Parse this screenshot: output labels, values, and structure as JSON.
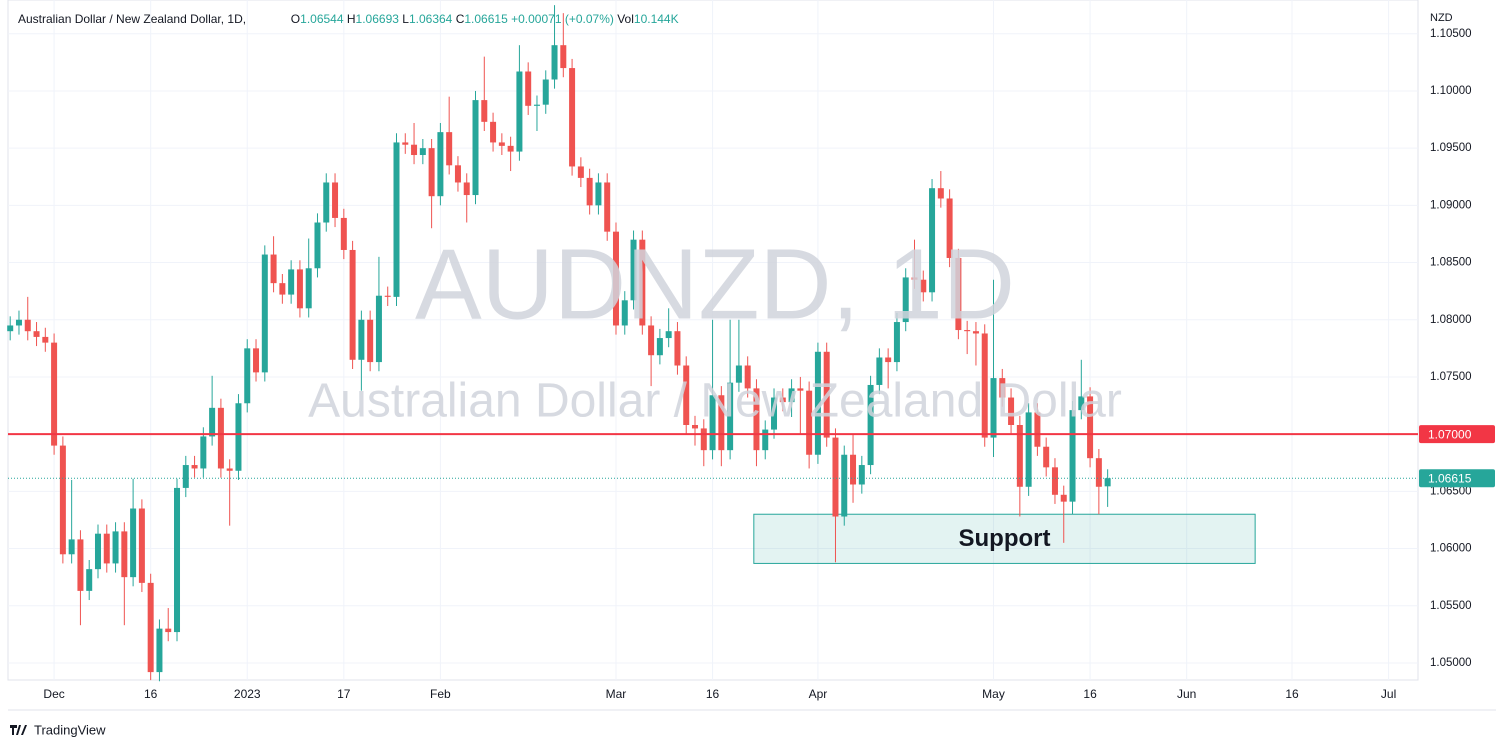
{
  "chart_data": {
    "type": "candlestick",
    "title": "Australian Dollar / New Zealand Dollar, 1D,",
    "watermark": "AUDNZD, 1D",
    "watermark_subtitle": "Australian Dollar / New Zealand Dollar",
    "currency": "NZD",
    "legend_labels": {
      "open": "O",
      "high": "H",
      "low": "L",
      "close": "C",
      "volume": "Vol"
    },
    "change": "+0.00071 (+0.07%)",
    "volume": "10.144K",
    "brand": "TradingView",
    "up_color": "#26a69a",
    "down_color": "#ef5350",
    "grid": true,
    "ylim": [
      1.04851,
      1.10795
    ],
    "yticks": [
      {
        "value": 1.05,
        "label": "1.05000"
      },
      {
        "value": 1.055,
        "label": "1.05500"
      },
      {
        "value": 1.06,
        "label": "1.06000"
      },
      {
        "value": 1.065,
        "label": "1.06500"
      },
      {
        "value": 1.07,
        "label": "1.07000"
      },
      {
        "value": 1.075,
        "label": "1.07500"
      },
      {
        "value": 1.08,
        "label": "1.08000"
      },
      {
        "value": 1.085,
        "label": "1.08500"
      },
      {
        "value": 1.09,
        "label": "1.09000"
      },
      {
        "value": 1.095,
        "label": "1.09500"
      },
      {
        "value": 1.1,
        "label": "1.10000"
      },
      {
        "value": 1.105,
        "label": "1.10500"
      }
    ],
    "xlim": [
      -0.25,
      160.35
    ],
    "xticks": [
      {
        "value": 5,
        "label": "Dec"
      },
      {
        "value": 16,
        "label": "16"
      },
      {
        "value": 27,
        "label": "2023"
      },
      {
        "value": 38,
        "label": "17"
      },
      {
        "value": 49,
        "label": "Feb"
      },
      {
        "value": 69,
        "label": "Mar"
      },
      {
        "value": 80,
        "label": "16"
      },
      {
        "value": 92,
        "label": "Apr"
      },
      {
        "value": 112,
        "label": "May"
      },
      {
        "value": 123,
        "label": "16"
      },
      {
        "value": 134,
        "label": "Jun"
      },
      {
        "value": 146,
        "label": "16"
      },
      {
        "value": 157,
        "label": "Jul"
      }
    ],
    "lines": [
      {
        "value": 1.07,
        "label": "1.07000",
        "color": "#f23645"
      }
    ],
    "zones": [
      {
        "label": "Support",
        "xrange": [
          84.7,
          141.8
        ],
        "yrange": [
          1.0587,
          1.063
        ],
        "color": "#26a69a"
      }
    ],
    "open": [
      1.079,
      1.0795,
      1.08,
      1.079,
      1.0785,
      1.078,
      1.069,
      1.0595,
      1.0608,
      1.0563,
      1.0582,
      1.0613,
      1.0587,
      1.0615,
      1.0575,
      1.0635,
      1.057,
      1.0492,
      1.053,
      1.0527,
      1.0653,
      1.0673,
      1.067,
      1.0698,
      1.0723,
      1.067,
      1.0668,
      1.0727,
      1.0775,
      1.0754,
      1.0857,
      1.0832,
      1.0822,
      1.0844,
      1.081,
      1.0845,
      1.0885,
      1.092,
      1.0889,
      1.0861,
      1.0765,
      1.08,
      1.0763,
      1.0821,
      1.082,
      1.0955,
      1.0953,
      1.0944,
      1.095,
      1.0908,
      1.0964,
      1.0935,
      1.092,
      1.0909,
      1.0992,
      1.0973,
      1.0955,
      1.0952,
      1.0947,
      1.1017,
      1.0987,
      1.0988,
      1.101,
      1.104,
      1.102,
      1.0934,
      1.0924,
      1.09,
      1.092,
      1.0877,
      1.0795,
      1.0817,
      1.087,
      1.0795,
      1.0769,
      1.0784,
      1.079,
      1.076,
      1.0708,
      1.0705,
      1.0686,
      1.0734,
      1.0686,
      1.0745,
      1.076,
      1.074,
      1.0686,
      1.0704,
      1.0732,
      1.0728,
      1.074,
      1.0738,
      1.0682,
      1.0772,
      1.0697,
      1.0628,
      1.0682,
      1.0656,
      1.0673,
      1.0743,
      1.0767,
      1.0763,
      1.0798,
      1.0837,
      1.0835,
      1.0824,
      1.0915,
      1.0906,
      1.0854,
      1.0791,
      1.079,
      1.0788,
      1.0697,
      1.0749,
      1.0732,
      1.0708,
      1.0654,
      1.0719,
      1.0689,
      1.0671,
      1.0647,
      1.0641,
      1.0721,
      1.0733,
      1.0679,
      1.06544
    ],
    "high": [
      1.0803,
      1.0808,
      1.082,
      1.0798,
      1.0793,
      1.0788,
      1.0698,
      1.066,
      1.0616,
      1.059,
      1.0621,
      1.0621,
      1.0623,
      1.0623,
      1.0661,
      1.0643,
      1.0578,
      1.0538,
      1.0548,
      1.0661,
      1.0681,
      1.0681,
      1.0706,
      1.0751,
      1.0731,
      1.0678,
      1.0735,
      1.0783,
      1.0783,
      1.0865,
      1.0873,
      1.084,
      1.0852,
      1.0852,
      1.0871,
      1.0893,
      1.0928,
      1.0928,
      1.0897,
      1.0869,
      1.0808,
      1.0808,
      1.0855,
      1.0829,
      1.0963,
      1.0963,
      1.0972,
      1.0958,
      1.0958,
      1.0972,
      1.0995,
      1.0943,
      1.0928,
      1.1,
      1.103,
      1.0981,
      1.0963,
      1.096,
      1.104,
      1.1025,
      1.0996,
      1.1018,
      1.1075,
      1.1068,
      1.1028,
      1.0942,
      1.0932,
      1.0928,
      1.0928,
      1.0885,
      1.0825,
      1.0878,
      1.0878,
      1.0803,
      1.0792,
      1.081,
      1.0798,
      1.0768,
      1.0716,
      1.0713,
      1.08,
      1.0742,
      1.08,
      1.08,
      1.0768,
      1.0748,
      1.0712,
      1.074,
      1.074,
      1.0748,
      1.075,
      1.0746,
      1.078,
      1.078,
      1.0705,
      1.069,
      1.07,
      1.0681,
      1.0751,
      1.0775,
      1.0775,
      1.0806,
      1.0845,
      1.087,
      1.0843,
      1.0923,
      1.093,
      1.0914,
      1.0862,
      1.0799,
      1.0798,
      1.0796,
      1.0835,
      1.0757,
      1.074,
      1.0716,
      1.0727,
      1.0727,
      1.0697,
      1.0679,
      1.0655,
      1.0729,
      1.0765,
      1.0741,
      1.0687,
      1.06693
    ],
    "low": [
      1.0782,
      1.0787,
      1.0782,
      1.0777,
      1.0772,
      1.0682,
      1.0587,
      1.0587,
      1.0533,
      1.0555,
      1.0574,
      1.0579,
      1.0579,
      1.0533,
      1.0567,
      1.0562,
      1.0485,
      1.0484,
      1.0519,
      1.0519,
      1.0645,
      1.0662,
      1.0662,
      1.069,
      1.0662,
      1.062,
      1.066,
      1.0719,
      1.0746,
      1.0746,
      1.0824,
      1.0814,
      1.0814,
      1.0802,
      1.0802,
      1.0837,
      1.0877,
      1.0881,
      1.0853,
      1.0757,
      1.0738,
      1.0755,
      1.0755,
      1.0812,
      1.0812,
      1.0945,
      1.0936,
      1.0936,
      1.088,
      1.09,
      1.0927,
      1.0912,
      1.0885,
      1.0901,
      1.0965,
      1.0947,
      1.0944,
      1.093,
      1.0939,
      1.0979,
      1.0965,
      1.098,
      1.1002,
      1.1012,
      1.0926,
      1.0916,
      1.0892,
      1.0892,
      1.0869,
      1.0787,
      1.0787,
      1.0809,
      1.0787,
      1.0742,
      1.0761,
      1.0776,
      1.0752,
      1.07,
      1.069,
      1.0672,
      1.0678,
      1.0672,
      1.0678,
      1.0737,
      1.0732,
      1.0672,
      1.0678,
      1.0696,
      1.072,
      1.0715,
      1.07,
      1.067,
      1.0674,
      1.0689,
      1.0588,
      1.062,
      1.064,
      1.0648,
      1.0665,
      1.0735,
      1.074,
      1.0755,
      1.079,
      1.0827,
      1.0816,
      1.0816,
      1.0898,
      1.0846,
      1.0783,
      1.077,
      1.076,
      1.0689,
      1.068,
      1.0724,
      1.07,
      1.0628,
      1.0646,
      1.0681,
      1.0663,
      1.0639,
      1.0605,
      1.063,
      1.0713,
      1.0671,
      1.063,
      1.06364
    ],
    "close": [
      1.0795,
      1.08,
      1.079,
      1.0785,
      1.078,
      1.069,
      1.0595,
      1.0608,
      1.0563,
      1.0582,
      1.0613,
      1.0587,
      1.0615,
      1.0575,
      1.0635,
      1.057,
      1.0492,
      1.053,
      1.0527,
      1.0653,
      1.0673,
      1.067,
      1.0698,
      1.0723,
      1.067,
      1.0668,
      1.0727,
      1.0775,
      1.0754,
      1.0857,
      1.0832,
      1.0822,
      1.0844,
      1.081,
      1.0845,
      1.0885,
      1.092,
      1.0889,
      1.0861,
      1.0765,
      1.08,
      1.0763,
      1.0821,
      1.082,
      1.0955,
      1.0953,
      1.0944,
      1.095,
      1.0908,
      1.0964,
      1.0935,
      1.092,
      1.0909,
      1.0992,
      1.0973,
      1.0955,
      1.0952,
      1.0947,
      1.1017,
      1.0987,
      1.0988,
      1.101,
      1.104,
      1.102,
      1.0934,
      1.0924,
      1.09,
      1.092,
      1.0877,
      1.0795,
      1.0817,
      1.087,
      1.0795,
      1.0769,
      1.0784,
      1.079,
      1.076,
      1.0708,
      1.0705,
      1.0686,
      1.0734,
      1.0686,
      1.0745,
      1.076,
      1.074,
      1.0686,
      1.0704,
      1.0732,
      1.0728,
      1.074,
      1.0738,
      1.0682,
      1.0772,
      1.0697,
      1.0628,
      1.0682,
      1.0656,
      1.0673,
      1.0743,
      1.0767,
      1.0763,
      1.0798,
      1.0837,
      1.0835,
      1.0824,
      1.0915,
      1.0906,
      1.0854,
      1.0791,
      1.079,
      1.0788,
      1.0697,
      1.0749,
      1.0732,
      1.0708,
      1.0654,
      1.0719,
      1.0689,
      1.0671,
      1.0647,
      1.0641,
      1.0721,
      1.0733,
      1.0679,
      1.0654,
      1.06615
    ]
  }
}
